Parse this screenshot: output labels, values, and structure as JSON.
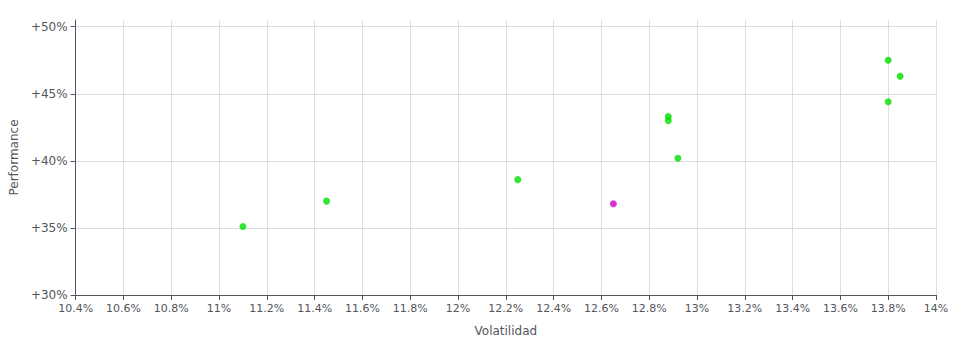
{
  "chart_data": {
    "type": "scatter",
    "xlabel": "Volatilidad",
    "ylabel": "Performance",
    "xlim": [
      0.104,
      0.14
    ],
    "ylim": [
      0.3,
      0.505
    ],
    "xticks": [
      {
        "value": 0.104,
        "label": "10.4%"
      },
      {
        "value": 0.106,
        "label": "10.6%"
      },
      {
        "value": 0.108,
        "label": "10.8%"
      },
      {
        "value": 0.11,
        "label": "11%"
      },
      {
        "value": 0.112,
        "label": "11.2%"
      },
      {
        "value": 0.114,
        "label": "11.4%"
      },
      {
        "value": 0.116,
        "label": "11.6%"
      },
      {
        "value": 0.118,
        "label": "11.8%"
      },
      {
        "value": 0.12,
        "label": "12%"
      },
      {
        "value": 0.122,
        "label": "12.2%"
      },
      {
        "value": 0.124,
        "label": "12.4%"
      },
      {
        "value": 0.126,
        "label": "12.6%"
      },
      {
        "value": 0.128,
        "label": "12.8%"
      },
      {
        "value": 0.13,
        "label": "13%"
      },
      {
        "value": 0.132,
        "label": "13.2%"
      },
      {
        "value": 0.134,
        "label": "13.4%"
      },
      {
        "value": 0.136,
        "label": "13.6%"
      },
      {
        "value": 0.138,
        "label": "13.8%"
      },
      {
        "value": 0.14,
        "label": "14%"
      }
    ],
    "yticks": [
      {
        "value": 0.3,
        "label": "+30%"
      },
      {
        "value": 0.35,
        "label": "+35%"
      },
      {
        "value": 0.4,
        "label": "+40%"
      },
      {
        "value": 0.45,
        "label": "+45%"
      },
      {
        "value": 0.5,
        "label": "+50%"
      }
    ],
    "grid": true,
    "series": [
      {
        "color": "#00dd00",
        "values": [
          [
            0.111,
            0.351
          ],
          [
            0.1145,
            0.37
          ],
          [
            0.1225,
            0.386
          ],
          [
            0.1288,
            0.43
          ],
          [
            0.1292,
            0.402
          ],
          [
            0.1288,
            0.433
          ],
          [
            0.138,
            0.444
          ],
          [
            0.1385,
            0.463
          ],
          [
            0.138,
            0.475
          ]
        ]
      },
      {
        "color": "#cc00cc",
        "values": [
          [
            0.1265,
            0.368
          ]
        ]
      }
    ]
  }
}
